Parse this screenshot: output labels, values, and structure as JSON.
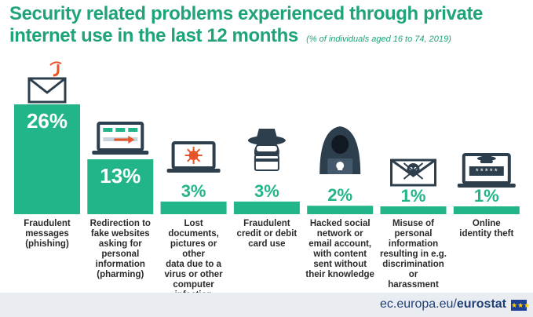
{
  "chart_data": {
    "type": "bar",
    "title": "Security related problems experienced through private internet use in the last 12 months",
    "subtitle": "(% of individuals aged 16 to 74, 2019)",
    "categories": [
      "Fraudulent messages (phishing)",
      "Redirection to fake websites asking for personal information (pharming)",
      "Lost documents, pictures or other data due to a virus or other computer infection",
      "Fraudulent credit or debit card use",
      "Hacked social network or email account, with content sent without their knowledge",
      "Misuse of personal information resulting in e.g. discrimination or harassment",
      "Online identity theft"
    ],
    "category_lines": [
      [
        "Fraudulent",
        "messages",
        "(phishing)"
      ],
      [
        "Redirection to",
        "fake websites",
        "asking for",
        "personal",
        "information",
        "(pharming)"
      ],
      [
        "Lost documents,",
        "pictures or other",
        "data due to a",
        "virus or other",
        "computer",
        "infection"
      ],
      [
        "Fraudulent",
        "credit or debit",
        "card use"
      ],
      [
        "Hacked social",
        "network or",
        "email account,",
        "with content",
        "sent without",
        "their knowledge"
      ],
      [
        "Misuse of",
        "personal",
        "information",
        "resulting in e.g.",
        "discrimination or",
        "harassment"
      ],
      [
        "Online",
        "identity theft"
      ]
    ],
    "values": [
      26,
      13,
      3,
      3,
      2,
      1,
      1
    ],
    "value_labels": [
      "26%",
      "13%",
      "3%",
      "3%",
      "2%",
      "1%",
      "1%"
    ],
    "unit": "%",
    "icons": [
      "envelope-hook-icon",
      "laptop-redirect-icon",
      "laptop-virus-icon",
      "masked-thief-card-icon",
      "hooded-hacker-laptop-icon",
      "envelope-skull-icon",
      "laptop-spy-password-icon"
    ],
    "colors": {
      "bar": "#22b58a",
      "title": "#1fa37a",
      "dark": "#2d3e4c",
      "accent": "#e8542a"
    }
  },
  "source": {
    "domain": "ec.europa.eu/",
    "brand": "eurostat"
  }
}
